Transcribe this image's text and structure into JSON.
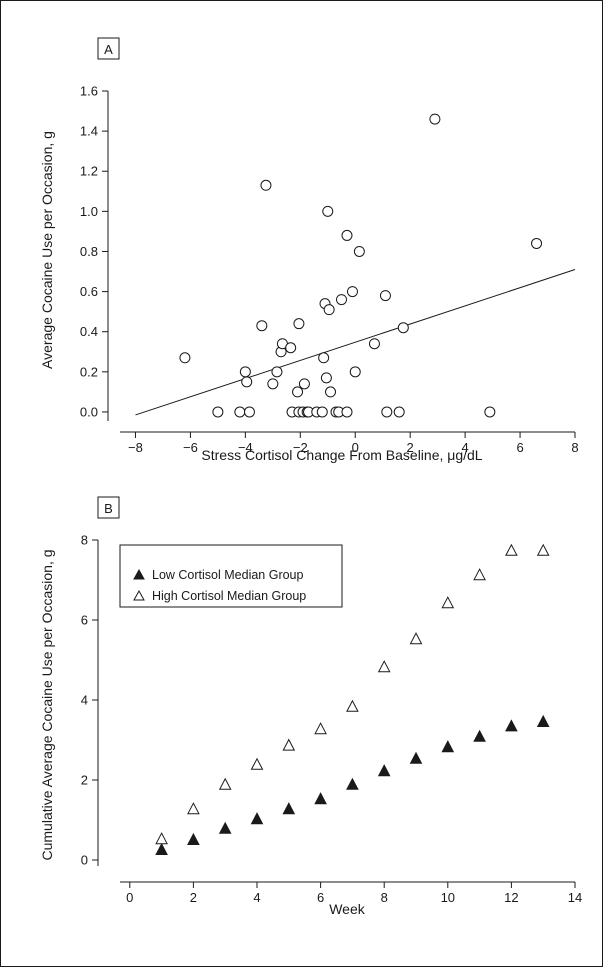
{
  "chart_data": [
    {
      "panel": "A",
      "type": "scatter",
      "xlabel": "Stress Cortisol Change From Baseline, μg/dL",
      "ylabel": "Average Cocaine Use per Occasion, g",
      "xlim": [
        -9,
        8
      ],
      "ylim": [
        -0.1,
        1.6
      ],
      "xticks": [
        -8,
        -6,
        -4,
        -2,
        0,
        2,
        4,
        6,
        8
      ],
      "yticks": [
        "0.0",
        "0.2",
        "0.4",
        "0.6",
        "0.8",
        "1.0",
        "1.2",
        "1.4",
        "1.6"
      ],
      "marker": "open-circle",
      "points": [
        [
          -6.2,
          0.27
        ],
        [
          -5.0,
          0.0
        ],
        [
          -4.2,
          0.0
        ],
        [
          -4.0,
          0.2
        ],
        [
          -3.95,
          0.15
        ],
        [
          -3.85,
          0.0
        ],
        [
          -3.4,
          0.43
        ],
        [
          -3.25,
          1.13
        ],
        [
          -3.0,
          0.14
        ],
        [
          -2.85,
          0.2
        ],
        [
          -2.7,
          0.3
        ],
        [
          -2.65,
          0.34
        ],
        [
          -2.35,
          0.32
        ],
        [
          -2.3,
          0.0
        ],
        [
          -2.1,
          0.1
        ],
        [
          -2.05,
          0.44
        ],
        [
          -2.05,
          0.0
        ],
        [
          -1.9,
          0.0
        ],
        [
          -1.85,
          0.14
        ],
        [
          -1.75,
          0.0
        ],
        [
          -1.7,
          0.0
        ],
        [
          -1.4,
          0.0
        ],
        [
          -1.2,
          0.0
        ],
        [
          -1.15,
          0.27
        ],
        [
          -1.1,
          0.54
        ],
        [
          -1.05,
          0.17
        ],
        [
          -1.0,
          1.0
        ],
        [
          -0.95,
          0.51
        ],
        [
          -0.9,
          0.1
        ],
        [
          -0.7,
          0.0
        ],
        [
          -0.6,
          0.0
        ],
        [
          -0.5,
          0.56
        ],
        [
          -0.3,
          0.88
        ],
        [
          -0.3,
          0.0
        ],
        [
          -0.1,
          0.6
        ],
        [
          0.0,
          0.2
        ],
        [
          0.15,
          0.8
        ],
        [
          0.7,
          0.34
        ],
        [
          1.1,
          0.58
        ],
        [
          1.15,
          0.0
        ],
        [
          1.6,
          0.0
        ],
        [
          1.75,
          0.42
        ],
        [
          2.9,
          1.46
        ],
        [
          4.9,
          0.0
        ],
        [
          6.6,
          0.84
        ]
      ],
      "fit_line": {
        "x": [
          -8,
          8
        ],
        "y": [
          -0.015,
          0.71
        ]
      }
    },
    {
      "panel": "B",
      "type": "scatter",
      "xlabel": "Week",
      "ylabel": "Cumulative Average Cocaine Use per Occasion, g",
      "xlim": [
        -1,
        14
      ],
      "ylim": [
        -0.55,
        8
      ],
      "xticks": [
        0,
        2,
        4,
        6,
        8,
        10,
        12,
        14
      ],
      "yticks": [
        0,
        2,
        4,
        6,
        8
      ],
      "legend_position": "top-left",
      "categories": [
        1,
        2,
        3,
        4,
        5,
        6,
        7,
        8,
        9,
        10,
        11,
        12,
        13
      ],
      "series": [
        {
          "name": "Low Cortisol Median Group",
          "marker": "filled-triangle",
          "values": [
            0.25,
            0.5,
            0.78,
            1.02,
            1.27,
            1.52,
            1.88,
            2.22,
            2.53,
            2.82,
            3.08,
            3.34,
            3.45
          ]
        },
        {
          "name": "High Cortisol Median Group",
          "marker": "open-triangle",
          "values": [
            0.52,
            1.27,
            1.88,
            2.38,
            2.86,
            3.27,
            3.83,
            4.82,
            5.52,
            6.42,
            7.12,
            7.73,
            7.73
          ]
        }
      ]
    }
  ],
  "colors": {
    "ink": "#1a1a1a",
    "background": "#ffffff"
  }
}
